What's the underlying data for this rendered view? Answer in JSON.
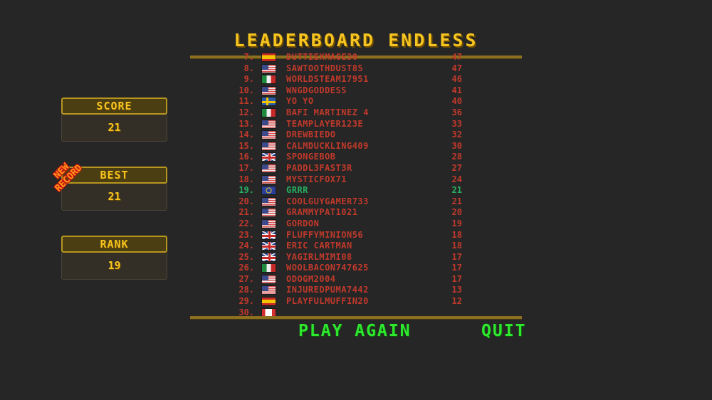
{
  "title": "LEADERBOARD ENDLESS",
  "stats": {
    "score_label": "SCORE",
    "score_value": "21",
    "best_label": "BEST",
    "best_value": "21",
    "rank_label": "RANK",
    "rank_value": "19",
    "new_record_line1": "NEW",
    "new_record_line2": "RECORD"
  },
  "leaderboard": [
    {
      "rank": "7.",
      "flag": "es",
      "name": "DUTTIEXMAGE30",
      "score": "47"
    },
    {
      "rank": "8.",
      "flag": "us",
      "name": "SAWTOOTHDUST85",
      "score": "47"
    },
    {
      "rank": "9.",
      "flag": "mx",
      "name": "WORLDSTEAM17951",
      "score": "46"
    },
    {
      "rank": "10.",
      "flag": "us",
      "name": "WNGDGODDESS",
      "score": "41"
    },
    {
      "rank": "11.",
      "flag": "se",
      "name": "YO YO",
      "score": "40"
    },
    {
      "rank": "12.",
      "flag": "mx",
      "name": "BAFI MARTINEZ 4",
      "score": "36"
    },
    {
      "rank": "13.",
      "flag": "us",
      "name": "TEAMPLAYER123E",
      "score": "33"
    },
    {
      "rank": "14.",
      "flag": "us",
      "name": "DREWBIEDO",
      "score": "32"
    },
    {
      "rank": "15.",
      "flag": "us",
      "name": "CALMDUCKLING409",
      "score": "30"
    },
    {
      "rank": "16.",
      "flag": "gb",
      "name": "SPONGEBOB",
      "score": "28"
    },
    {
      "rank": "17.",
      "flag": "us",
      "name": "PADDL3FAST3R",
      "score": "27"
    },
    {
      "rank": "18.",
      "flag": "us",
      "name": "MYSTICFOX71",
      "score": "24"
    },
    {
      "rank": "19.",
      "flag": "eu",
      "name": "GRRR",
      "score": "21",
      "current_player": true
    },
    {
      "rank": "20.",
      "flag": "us",
      "name": "COOLGUYGAMER733",
      "score": "21"
    },
    {
      "rank": "21.",
      "flag": "us",
      "name": "GRAMMYPAT1021",
      "score": "20"
    },
    {
      "rank": "22.",
      "flag": "us",
      "name": "GORDON",
      "score": "19"
    },
    {
      "rank": "23.",
      "flag": "gb",
      "name": "FLUFFYMINION56",
      "score": "18"
    },
    {
      "rank": "24.",
      "flag": "gb",
      "name": "ERIC CARTMAN",
      "score": "18"
    },
    {
      "rank": "25.",
      "flag": "gb",
      "name": "YAGIRLMIMI08",
      "score": "17"
    },
    {
      "rank": "26.",
      "flag": "mx",
      "name": "WOOLBACON747625",
      "score": "17"
    },
    {
      "rank": "27.",
      "flag": "us",
      "name": "ODOGM2004",
      "score": "17"
    },
    {
      "rank": "28.",
      "flag": "us",
      "name": "INJUREDPUMA7442",
      "score": "13"
    },
    {
      "rank": "29.",
      "flag": "es",
      "name": "PLAYFULMUFFIN20",
      "score": "12"
    },
    {
      "rank": "30.",
      "flag": "ca",
      "name": "",
      "score": ""
    }
  ],
  "buttons": {
    "play_again": "PLAY AGAIN",
    "quit": "QUIT"
  },
  "colors": {
    "accent": "#f7c520",
    "rank_text": "#c0392b",
    "current_player": "#27ae60",
    "button": "#2ee82e"
  }
}
